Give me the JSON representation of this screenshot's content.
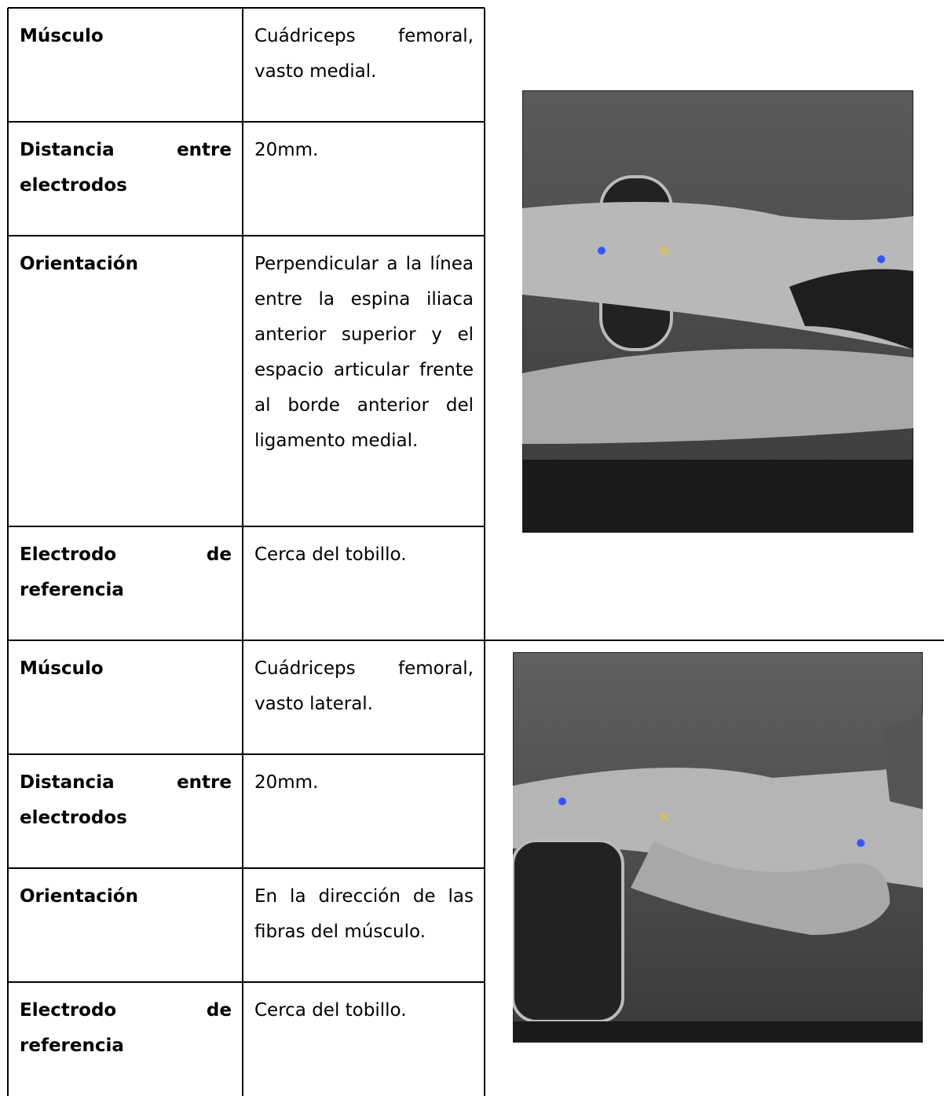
{
  "sections": [
    {
      "rows": [
        {
          "label": "Músculo",
          "value": "Cuádriceps femoral, vasto medial."
        },
        {
          "label": "Distancia entre electrodos",
          "value": "20mm."
        },
        {
          "label": "Orientación",
          "value": "Perpendicular a la línea entre la espina iliaca anterior superior y el espacio articular frente al borde anterior del ligamento medial."
        },
        {
          "label": "Electrodo de referencia",
          "value": "Cerca del tobillo."
        }
      ]
    },
    {
      "rows": [
        {
          "label": "Músculo",
          "value": "Cuádriceps femoral, vasto lateral."
        },
        {
          "label": "Distancia entre electrodos",
          "value": "20mm."
        },
        {
          "label": "Orientación",
          "value": "En la dirección de las fibras del músculo."
        },
        {
          "label": "Electrodo de referencia",
          "value": "Cerca del tobillo."
        }
      ]
    }
  ]
}
